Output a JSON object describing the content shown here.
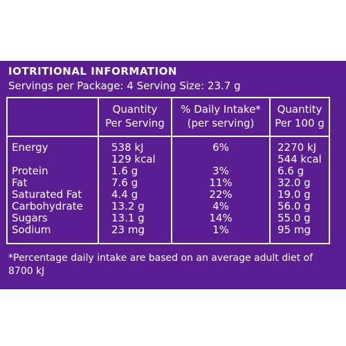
{
  "title": "IOTRITIONAL INFORMATION",
  "servings_line": "Servings per Package: 4 Serving Size: 23.7 g",
  "headers": {
    "col1_line1": "Quantity",
    "col1_line2": "Per Serving",
    "col2_line1": "% Daily Intake*",
    "col2_line2": "(per serving)",
    "col3_line1": "Quantity",
    "col3_line2": "Per 100 g"
  },
  "rows": [
    {
      "label": "Energy",
      "per_serving": "538 kJ",
      "daily": "6%",
      "per_100g": "2270 kJ"
    },
    {
      "label": "",
      "per_serving": "129 kcal",
      "daily": "",
      "per_100g": "544 kcal"
    },
    {
      "label": "Protein",
      "per_serving": "1.6 g",
      "daily": "3%",
      "per_100g": "6.6 g"
    },
    {
      "label": "Fat",
      "per_serving": "7.6 g",
      "daily": "11%",
      "per_100g": "32.0 g"
    },
    {
      "label": "Saturated Fat",
      "per_serving": "4.4 g",
      "daily": "22%",
      "per_100g": "19.0 g"
    },
    {
      "label": "Carbohydrate",
      "per_serving": "13.2 g",
      "daily": "4%",
      "per_100g": "56.0 g"
    },
    {
      "label": "Sugars",
      "per_serving": "13.1 g",
      "daily": "14%",
      "per_100g": "55.0 g"
    },
    {
      "label": "Sodium",
      "per_serving": "23 mg",
      "daily": "1%",
      "per_100g": "95 mg"
    }
  ],
  "footnote": "*Percentage daily intake are based on an average adult diet of 8700 kJ",
  "colors": {
    "panel": "#5a1e92",
    "text": "#ffffff",
    "background": "#ffffff"
  }
}
